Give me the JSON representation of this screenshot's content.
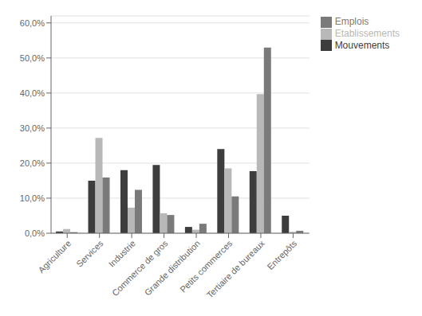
{
  "chart_data": {
    "type": "bar",
    "categories": [
      "Agriculture",
      "Services",
      "Industrie",
      "Commerce de gros",
      "Grande distribution",
      "Petits commerces",
      "Tertiaire de bureaux",
      "Entrepôts"
    ],
    "series": [
      {
        "name": "Mouvements",
        "color": "#3d3d3d",
        "values": [
          0.005,
          0.15,
          0.18,
          0.195,
          0.018,
          0.24,
          0.177,
          0.05
        ]
      },
      {
        "name": "Etablissements",
        "color": "#b8b8b8",
        "values": [
          0.012,
          0.272,
          0.073,
          0.057,
          0.01,
          0.185,
          0.397,
          0.004
        ]
      },
      {
        "name": "Emplois",
        "color": "#7a7a7a",
        "values": [
          0.003,
          0.159,
          0.124,
          0.052,
          0.027,
          0.105,
          0.53,
          0.007
        ]
      }
    ],
    "ylim": [
      0,
      0.62
    ],
    "yticks": [
      {
        "value": 0.0,
        "label": "0,0%"
      },
      {
        "value": 0.1,
        "label": "10,0%"
      },
      {
        "value": 0.2,
        "label": "20,0%"
      },
      {
        "value": 0.3,
        "label": "30,0%"
      },
      {
        "value": 0.4,
        "label": "40,0%"
      },
      {
        "value": 0.5,
        "label": "50,0%"
      },
      {
        "value": 0.6,
        "label": "60,0%"
      }
    ],
    "grid": true,
    "legend": "right"
  }
}
